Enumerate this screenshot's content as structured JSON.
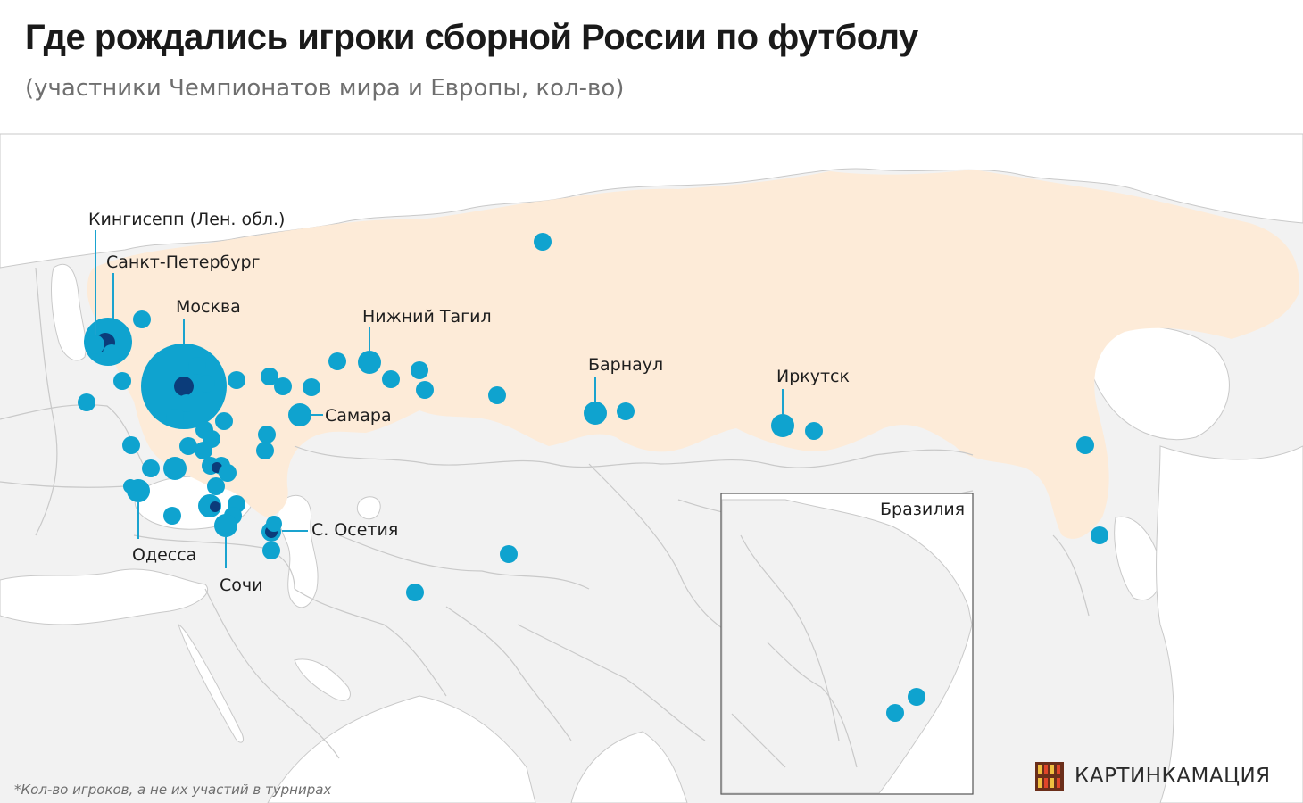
{
  "title": "Где рождались игроки сборной России по футболу",
  "subtitle": "(участники Чемпионатов мира и Европы, кол-во)",
  "footnote": "*Кол-во игроков, а не их участий в турнирах",
  "brand": {
    "name": "КАРТИНКАМАЦИЯ",
    "logo_icon": "film-strip-logo-icon"
  },
  "colors": {
    "russia_fill": "#fdebd8",
    "land_fill": "#f2f2f2",
    "sea_fill": "#ffffff",
    "border": "#c9c9c9",
    "bubble_fill": "#0fa3cf",
    "bubble_overlap": "#0b3c7a"
  },
  "labels": {
    "kingisepp": "Кингисепп (Лен. обл.)",
    "spb": "Санкт-Петербург",
    "moscow": "Москва",
    "nizhny_tagil": "Нижний Тагил",
    "barnaul": "Барнаул",
    "irkutsk": "Иркутск",
    "samara": "Самара",
    "n_ossetia": "С. Осетия",
    "odessa": "Одесса",
    "sochi": "Сочи"
  },
  "inset": {
    "title": "Бразилия"
  }
}
